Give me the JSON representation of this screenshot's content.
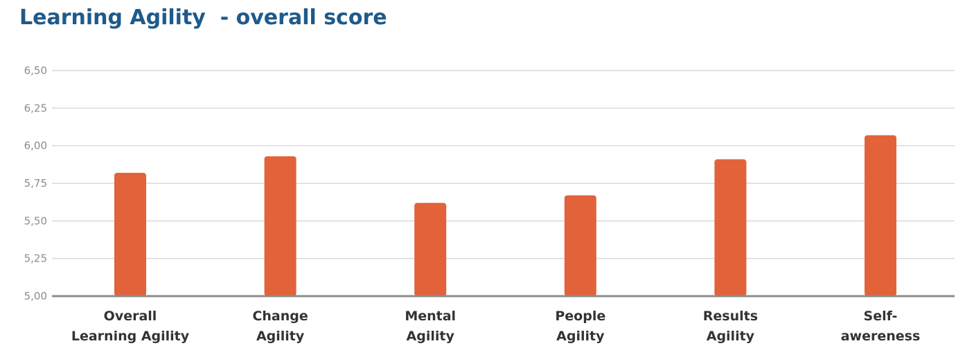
{
  "title": "Learning Agility  - overall score",
  "chart_data": {
    "type": "bar",
    "categories": [
      [
        "Overall",
        "Learning Agility"
      ],
      [
        "Change",
        "Agility"
      ],
      [
        "Mental",
        "Agility"
      ],
      [
        "People",
        "Agility"
      ],
      [
        "Results",
        "Agility"
      ],
      [
        "Self-",
        "awereness"
      ]
    ],
    "values": [
      5.82,
      5.93,
      5.62,
      5.67,
      5.91,
      6.07
    ],
    "ylim": [
      5.0,
      6.5
    ],
    "yticks": [
      "5,00",
      "5,25",
      "5,50",
      "5,75",
      "6,00",
      "6,25",
      "6,50"
    ],
    "grid": true,
    "bar_color": "#e2623a",
    "grid_color": "#d9d9d9",
    "axis_color": "#8c8c8c"
  }
}
